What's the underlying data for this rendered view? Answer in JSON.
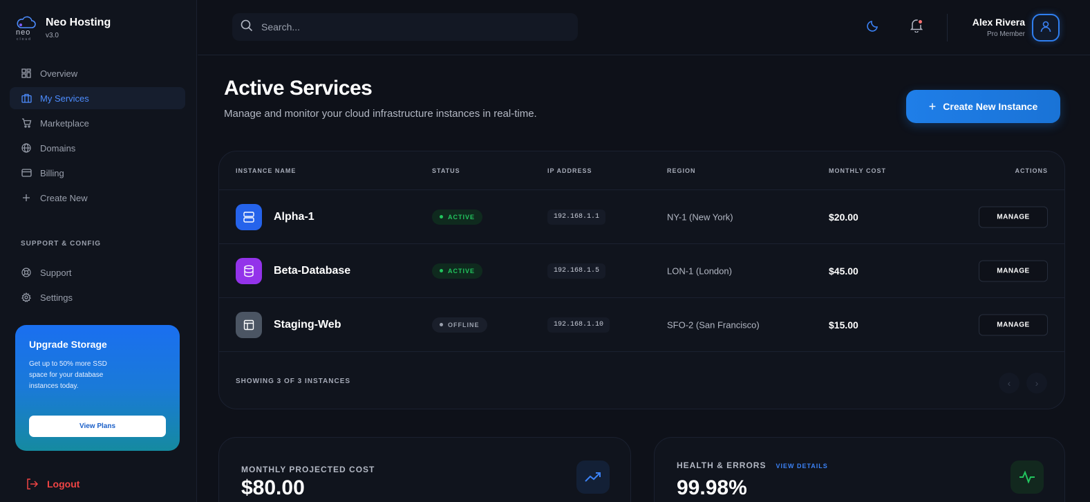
{
  "brand": {
    "name": "Neo Hosting",
    "version": "v3.0",
    "logo_text": "neo",
    "logo_sub": "cloud"
  },
  "nav": {
    "items": [
      {
        "label": "Overview",
        "icon": "grid-icon"
      },
      {
        "label": "My Services",
        "icon": "briefcase-icon",
        "active": true
      },
      {
        "label": "Marketplace",
        "icon": "cart-icon"
      },
      {
        "label": "Domains",
        "icon": "globe-icon"
      },
      {
        "label": "Billing",
        "icon": "card-icon"
      },
      {
        "label": "Create New",
        "icon": "plus-icon"
      }
    ],
    "section_title": "SUPPORT & CONFIG",
    "support_items": [
      {
        "label": "Support",
        "icon": "lifebuoy-icon"
      },
      {
        "label": "Settings",
        "icon": "gear-icon"
      }
    ]
  },
  "upgrade": {
    "title": "Upgrade Storage",
    "text": "Get up to 50% more SSD space for your database instances today.",
    "button": "View Plans"
  },
  "logout": "Logout",
  "header": {
    "search_placeholder": "Search...",
    "user_name": "Alex Rivera",
    "user_role": "Pro Member"
  },
  "page": {
    "title": "Active Services",
    "subtitle": "Manage and monitor your cloud infrastructure instances in real-time.",
    "create_button": "Create New Instance"
  },
  "table": {
    "columns": [
      "INSTANCE NAME",
      "STATUS",
      "IP ADDRESS",
      "REGION",
      "MONTHLY COST",
      "ACTIONS"
    ],
    "rows": [
      {
        "name": "Alpha-1",
        "status": "ACTIVE",
        "ip": "192.168.1.1",
        "region": "NY-1 (New York)",
        "cost": "$20.00",
        "action": "MANAGE",
        "icon_color": "#2563eb"
      },
      {
        "name": "Beta-Database",
        "status": "ACTIVE",
        "ip": "192.168.1.5",
        "region": "LON-1 (London)",
        "cost": "$45.00",
        "action": "MANAGE",
        "icon_color": "#9333ea"
      },
      {
        "name": "Staging-Web",
        "status": "OFFLINE",
        "ip": "192.168.1.10",
        "region": "SFO-2 (San Francisco)",
        "cost": "$15.00",
        "action": "MANAGE",
        "icon_color": "#4b5563"
      }
    ],
    "footer": "SHOWING 3 OF 3 INSTANCES"
  },
  "stats": {
    "cost_label": "MONTHLY PROJECTED COST",
    "cost_value": "$80.00",
    "health_label": "HEALTH & ERRORS",
    "health_link": "VIEW DETAILS",
    "health_value": "99.98%"
  }
}
